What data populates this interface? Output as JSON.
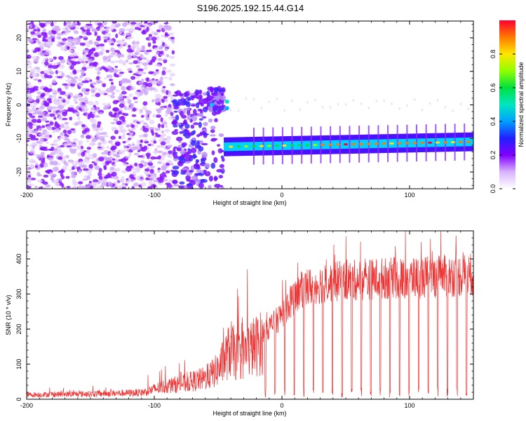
{
  "chart_data": [
    {
      "type": "heatmap",
      "title": "S196.2025.192.15.44.G14",
      "xlabel": "Height of straight line (km)",
      "ylabel": "Frequency (Hz)",
      "xlim": [
        -200,
        150
      ],
      "ylim": [
        -25,
        25
      ],
      "xticks": [
        -200,
        -100,
        0,
        100
      ],
      "xtick_labels": [
        "-200",
        "-100",
        "0",
        "100"
      ],
      "yticks": [
        -20,
        -10,
        0,
        10,
        20
      ],
      "ytick_labels": [
        "-20",
        "-10",
        "0",
        "10",
        "20"
      ],
      "colorbar": {
        "label": "Normalized spectral amplitude",
        "range": [
          0,
          1
        ],
        "ticks": [
          0.0,
          0.2,
          0.4,
          0.6,
          0.8
        ],
        "tick_labels": [
          "0.0",
          "0.2",
          "0.4",
          "0.6",
          "0.8"
        ]
      },
      "regions": [
        {
          "kind": "noise",
          "x": [
            -200,
            -85
          ],
          "y": [
            -25,
            25
          ],
          "amplitude": 0.2
        },
        {
          "kind": "clusters",
          "x": [
            -85,
            -45
          ],
          "y": [
            -25,
            4
          ],
          "amplitude": 0.3
        },
        {
          "kind": "carrier",
          "x": [
            -45,
            150
          ],
          "f_start": -12.5,
          "f_end": -11,
          "amplitude_max": 0.95
        }
      ]
    },
    {
      "type": "line",
      "xlabel": "Height of straight line (km)",
      "ylabel": "SNR (10 * v/v)",
      "xlim": [
        -200,
        150
      ],
      "ylim": [
        0,
        480
      ],
      "xticks": [
        -200,
        -100,
        0,
        100
      ],
      "xtick_labels": [
        "-200",
        "-100",
        "0",
        "100"
      ],
      "yticks": [
        0,
        100,
        200,
        300,
        400
      ],
      "ytick_labels": [
        "0",
        "100",
        "200",
        "300",
        "400"
      ],
      "color": "#ee3333",
      "envelope_x": [
        -200,
        -150,
        -110,
        -90,
        -75,
        -60,
        -50,
        -40,
        -35,
        -25,
        -15,
        -5,
        5,
        15,
        25,
        40,
        60,
        80,
        100,
        120,
        150
      ],
      "envelope_y": [
        15,
        18,
        22,
        45,
        55,
        70,
        100,
        170,
        140,
        170,
        190,
        220,
        270,
        310,
        325,
        335,
        340,
        345,
        345,
        350,
        355
      ]
    }
  ]
}
